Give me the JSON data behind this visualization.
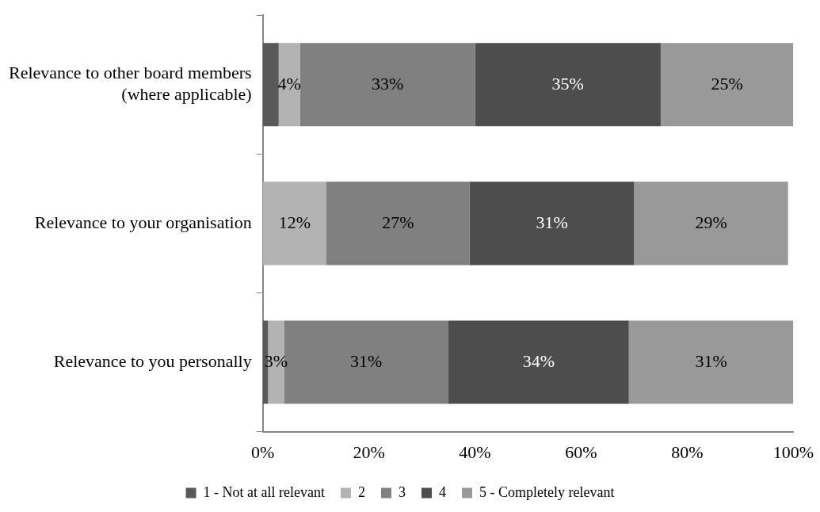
{
  "chart_data": {
    "type": "bar",
    "orientation": "horizontal",
    "stacked": true,
    "grid": false,
    "legend": "bottom",
    "categories": [
      "Relevance to other board members\n(where applicable)",
      "Relevance to your organisation",
      "Relevance to you personally"
    ],
    "series": [
      {
        "name": "1 - Not at all relevant",
        "color": "#595959",
        "values": [
          3,
          0,
          1
        ],
        "value_labels": [
          null,
          null,
          null
        ]
      },
      {
        "name": "2",
        "color": "#b3b3b3",
        "values": [
          4,
          12,
          3
        ],
        "value_labels": [
          "4%",
          "12%",
          "3%"
        ]
      },
      {
        "name": "3",
        "color": "#808080",
        "values": [
          33,
          27,
          31
        ],
        "value_labels": [
          "33%",
          "27%",
          "31%"
        ]
      },
      {
        "name": "4",
        "color": "#4d4d4d",
        "values": [
          35,
          31,
          34
        ],
        "value_labels": [
          "35%",
          "31%",
          "34%"
        ]
      },
      {
        "name": "5 - Completely relevant",
        "color": "#999999",
        "values": [
          25,
          29,
          31
        ],
        "value_labels": [
          "25%",
          "29%",
          "31%"
        ]
      }
    ],
    "xlim": [
      0,
      100
    ],
    "xticks": [
      {
        "value": 0,
        "label": "0%"
      },
      {
        "value": 20,
        "label": "20%"
      },
      {
        "value": 40,
        "label": "40%"
      },
      {
        "value": 60,
        "label": "60%"
      },
      {
        "value": 80,
        "label": "80%"
      },
      {
        "value": 100,
        "label": "100%"
      }
    ]
  }
}
